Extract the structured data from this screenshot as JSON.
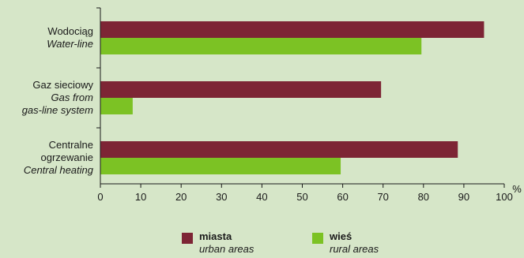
{
  "chart_data": {
    "type": "bar",
    "orientation": "horizontal",
    "categories": [
      {
        "lines": [
          "Wodociąg"
        ],
        "lines_en": [
          "Water-line"
        ]
      },
      {
        "lines": [
          "Gaz sieciowy"
        ],
        "lines_en": [
          "Gas from",
          "gas-line system"
        ]
      },
      {
        "lines": [
          "Centralne",
          "ogrzewanie"
        ],
        "lines_en": [
          "Central heating"
        ]
      }
    ],
    "series": [
      {
        "name": "miasta",
        "name_en": "urban areas",
        "color": "#7d2535",
        "values": [
          95,
          69.5,
          88.5
        ]
      },
      {
        "name": "wieś",
        "name_en": "rural areas",
        "color": "#7cc224",
        "values": [
          79.5,
          8,
          59.5
        ]
      }
    ],
    "xlim": [
      0,
      100
    ],
    "xticks": [
      0,
      10,
      20,
      30,
      40,
      50,
      60,
      70,
      80,
      90,
      100
    ],
    "xunit": "%",
    "grid": false,
    "legend_position": "bottom"
  }
}
